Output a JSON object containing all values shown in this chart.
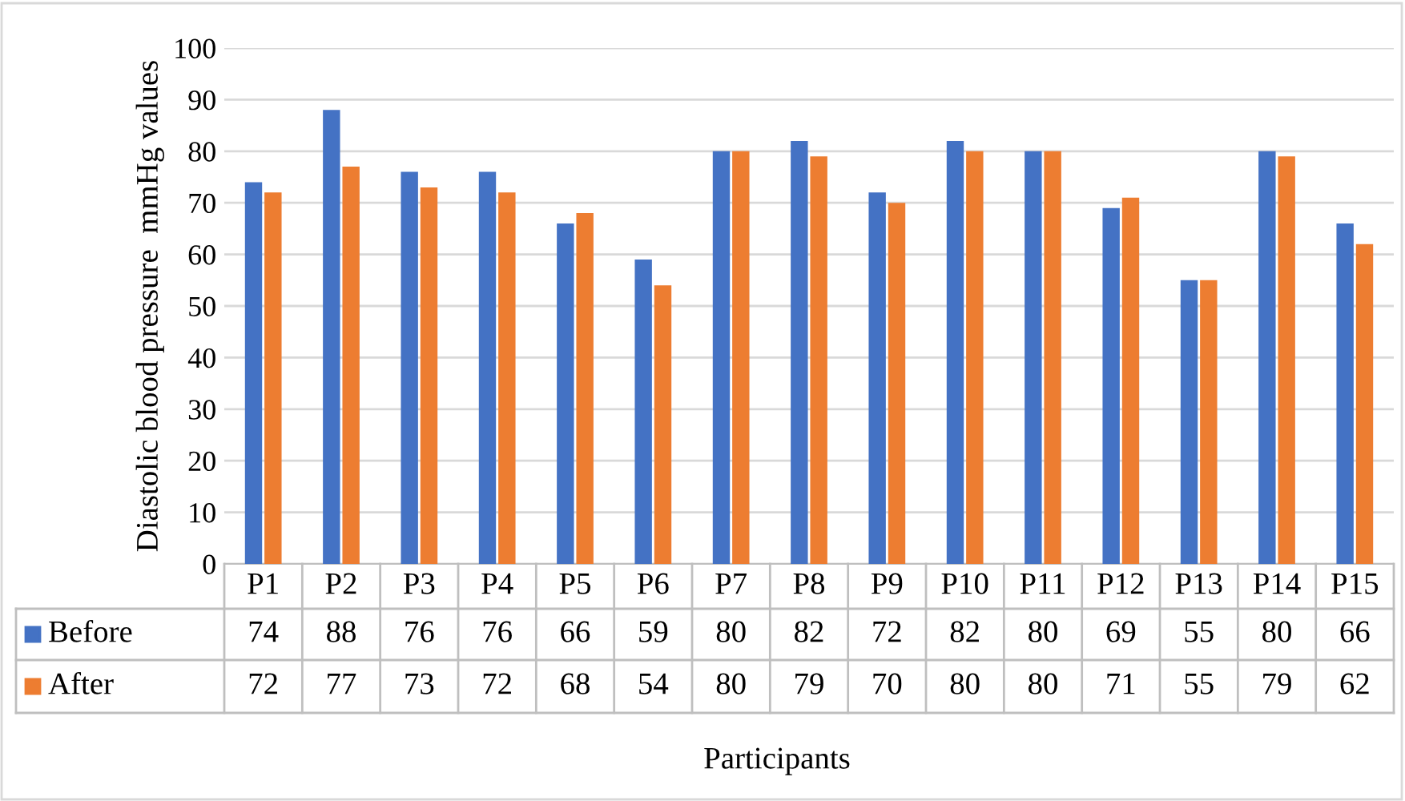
{
  "chart_data": {
    "type": "bar",
    "ylabel": "Diastolic blood pressure  mmHg values",
    "xlabel": "Participants",
    "categories": [
      "P1",
      "P2",
      "P3",
      "P4",
      "P5",
      "P6",
      "P7",
      "P8",
      "P9",
      "P10",
      "P11",
      "P12",
      "P13",
      "P14",
      "P15"
    ],
    "series": [
      {
        "name": "Before",
        "color": "#4472c4",
        "values": [
          74,
          88,
          76,
          76,
          66,
          59,
          80,
          82,
          72,
          82,
          80,
          69,
          55,
          80,
          66
        ]
      },
      {
        "name": "After",
        "color": "#ed7d31",
        "values": [
          72,
          77,
          73,
          72,
          68,
          54,
          80,
          79,
          70,
          80,
          80,
          71,
          55,
          79,
          62
        ]
      }
    ],
    "ylim": [
      0,
      100
    ],
    "yticks": [
      0,
      10,
      20,
      30,
      40,
      50,
      60,
      70,
      80,
      90,
      100
    ],
    "grid": "y",
    "legend": "bottom",
    "data_labels": true
  }
}
